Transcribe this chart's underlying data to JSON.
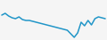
{
  "x": [
    0,
    1,
    2,
    3,
    4,
    5,
    6,
    7,
    8,
    9,
    10,
    11,
    12,
    13,
    14,
    15,
    16,
    17,
    18,
    19,
    20,
    21,
    22,
    23,
    24,
    25,
    26,
    27,
    28,
    29,
    30
  ],
  "y": [
    28,
    30,
    27,
    25,
    24,
    26,
    23,
    22,
    22,
    21,
    20,
    19,
    18,
    17,
    16,
    15,
    14,
    13,
    12,
    11,
    7,
    3,
    8,
    20,
    16,
    22,
    17,
    24,
    26,
    25,
    24
  ],
  "line_color": "#2196c8",
  "linewidth": 1.1,
  "background_color": "#f5f5f5",
  "ylim": [
    0,
    45
  ],
  "xlim": [
    -0.5,
    30.5
  ]
}
